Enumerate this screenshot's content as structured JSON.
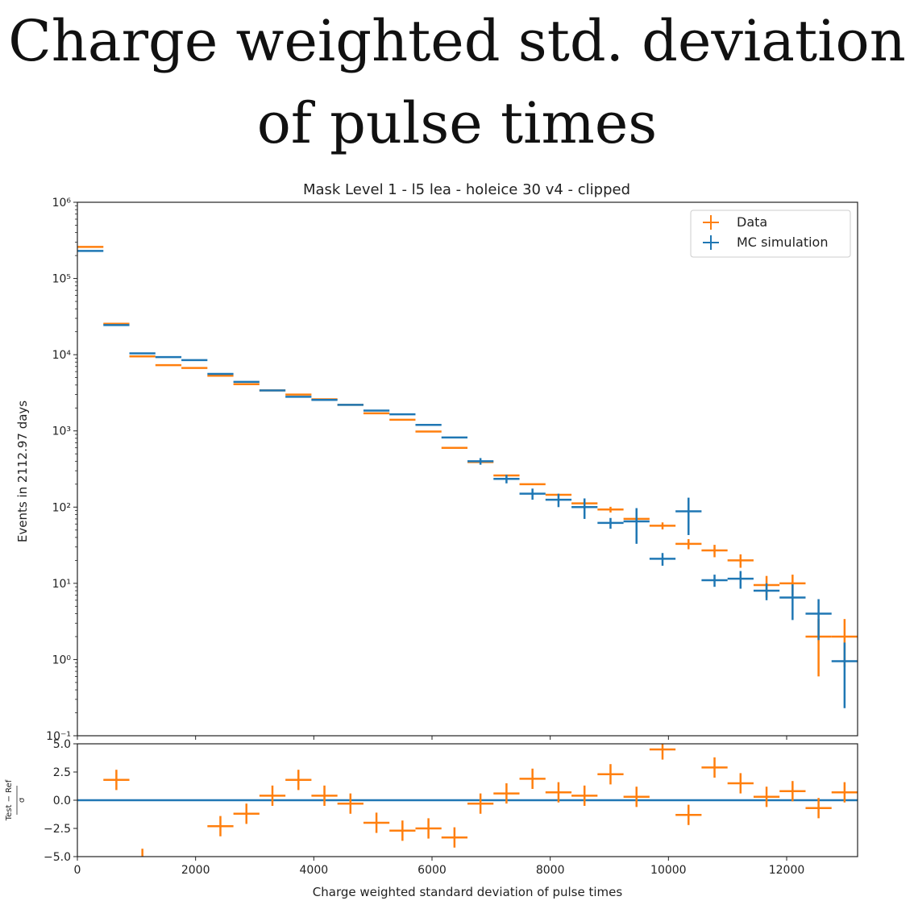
{
  "page_title": {
    "line1": "Charge weighted std. deviation",
    "line2": "of pulse times"
  },
  "colors": {
    "data": "#ff7f0e",
    "mc": "#1f77b4",
    "axis": "#222222"
  },
  "chart_data": [
    {
      "type": "scatter",
      "title": "Mask Level 1 - l5 lea - holeice 30 v4 - clipped",
      "xlabel": "",
      "ylabel": "Events in 2112.97 days",
      "yscale": "log",
      "xlim": [
        0,
        13200
      ],
      "ylim": [
        0.1,
        1000000
      ],
      "ytick_labels": [
        "10⁻¹",
        "10⁰",
        "10¹",
        "10²",
        "10³",
        "10⁴",
        "10⁵",
        "10⁶"
      ],
      "ytick_values": [
        0.1,
        1,
        10,
        100,
        1000,
        10000,
        100000,
        1000000
      ],
      "legend": {
        "placement": "top-right",
        "entries": [
          "Data",
          "MC simulation"
        ]
      },
      "bin_width": 440,
      "series": [
        {
          "name": "Data",
          "color": "#ff7f0e",
          "x": [
            220,
            660,
            1100,
            1540,
            1980,
            2420,
            2860,
            3300,
            3740,
            4180,
            4620,
            5060,
            5500,
            5940,
            6380,
            6820,
            7260,
            7700,
            8140,
            8580,
            9020,
            9460,
            9900,
            10340,
            10780,
            11220,
            11660,
            12100,
            12540,
            12980
          ],
          "y": [
            260000,
            25500,
            9500,
            7300,
            6700,
            5300,
            4100,
            3400,
            3000,
            2600,
            2200,
            1700,
            1400,
            980,
            600,
            390,
            260,
            200,
            145,
            112,
            93,
            70,
            57,
            33,
            27,
            20,
            9.5,
            10,
            2,
            2
          ],
          "yerr_low": [
            0,
            0,
            0,
            0,
            0,
            0,
            0,
            0,
            0,
            0,
            0,
            0,
            0,
            0,
            0,
            0,
            0,
            0,
            0,
            0,
            8,
            0,
            6,
            5,
            5,
            4,
            3,
            3,
            1.4,
            1.2
          ],
          "yerr_high": [
            0,
            0,
            0,
            0,
            0,
            0,
            0,
            0,
            0,
            0,
            0,
            0,
            0,
            0,
            0,
            0,
            0,
            0,
            0,
            0,
            8,
            0,
            6,
            5,
            5,
            4,
            3,
            3,
            1.4,
            1.4
          ]
        },
        {
          "name": "MC simulation",
          "color": "#1f77b4",
          "x": [
            220,
            660,
            1100,
            1540,
            1980,
            2420,
            2860,
            3300,
            3740,
            4180,
            4620,
            5060,
            5500,
            5940,
            6380,
            6820,
            7260,
            7700,
            8140,
            8580,
            9020,
            9460,
            9900,
            10340,
            10780,
            11220,
            11660,
            12100,
            12540,
            12980
          ],
          "y": [
            230000,
            24500,
            10400,
            9300,
            8500,
            5600,
            4400,
            3400,
            2800,
            2550,
            2200,
            1850,
            1650,
            1200,
            820,
            400,
            235,
            150,
            125,
            100,
            62,
            65,
            21,
            88,
            11,
            11.5,
            8,
            6.5,
            4,
            0.95
          ],
          "yerr_low": [
            0,
            0,
            0,
            0,
            0,
            0,
            0,
            0,
            0,
            0,
            0,
            0,
            0,
            0,
            0,
            40,
            30,
            25,
            25,
            30,
            10,
            32,
            4,
            45,
            2,
            3,
            2,
            3.2,
            2.2,
            0.72
          ],
          "yerr_high": [
            0,
            0,
            0,
            0,
            0,
            0,
            0,
            0,
            0,
            0,
            0,
            0,
            0,
            0,
            0,
            40,
            30,
            25,
            25,
            30,
            10,
            32,
            4,
            45,
            2,
            3,
            2,
            3.2,
            2.2,
            0.72
          ]
        }
      ]
    },
    {
      "type": "scatter",
      "title": "",
      "xlabel": "Charge weighted standard deviation of pulse times",
      "ylabel": "Test − Ref / σ",
      "ylabel_num": "Test − Ref",
      "ylabel_den": "σ",
      "xlim": [
        0,
        13200
      ],
      "ylim": [
        -5.0,
        5.0
      ],
      "ytick_labels": [
        "−5.0",
        "−2.5",
        "0.0",
        "2.5",
        "5.0"
      ],
      "ytick_values": [
        -5.0,
        -2.5,
        0.0,
        2.5,
        5.0
      ],
      "xtick_labels": [
        "0",
        "2000",
        "4000",
        "6000",
        "8000",
        "10000",
        "12000"
      ],
      "xtick_values": [
        0,
        2000,
        4000,
        6000,
        8000,
        10000,
        12000
      ],
      "reference_line": 0.0,
      "bin_width": 440,
      "series": [
        {
          "name": "",
          "color": "#ff7f0e",
          "x": [
            660,
            1100,
            2420,
            2860,
            3300,
            3740,
            4180,
            4620,
            5060,
            5500,
            5940,
            6380,
            6820,
            7260,
            7700,
            8140,
            8580,
            9020,
            9460,
            9900,
            10340,
            10780,
            11220,
            11660,
            12100,
            12540,
            12980
          ],
          "y": [
            1.8,
            -5.2,
            -2.3,
            -1.2,
            0.4,
            1.8,
            0.4,
            -0.3,
            -2.0,
            -2.7,
            -2.5,
            -3.3,
            -0.3,
            0.6,
            1.9,
            0.7,
            0.4,
            2.3,
            0.3,
            4.5,
            -1.3,
            2.9,
            1.5,
            0.3,
            0.8,
            -0.7,
            0.7
          ],
          "yerr": [
            0.9,
            0.9,
            0.9,
            0.9,
            0.9,
            0.9,
            0.9,
            0.9,
            0.9,
            0.9,
            0.9,
            0.9,
            0.9,
            0.9,
            0.9,
            0.9,
            0.9,
            0.9,
            0.9,
            0.9,
            0.9,
            0.9,
            0.9,
            0.9,
            0.9,
            0.9,
            0.9
          ]
        }
      ]
    }
  ]
}
